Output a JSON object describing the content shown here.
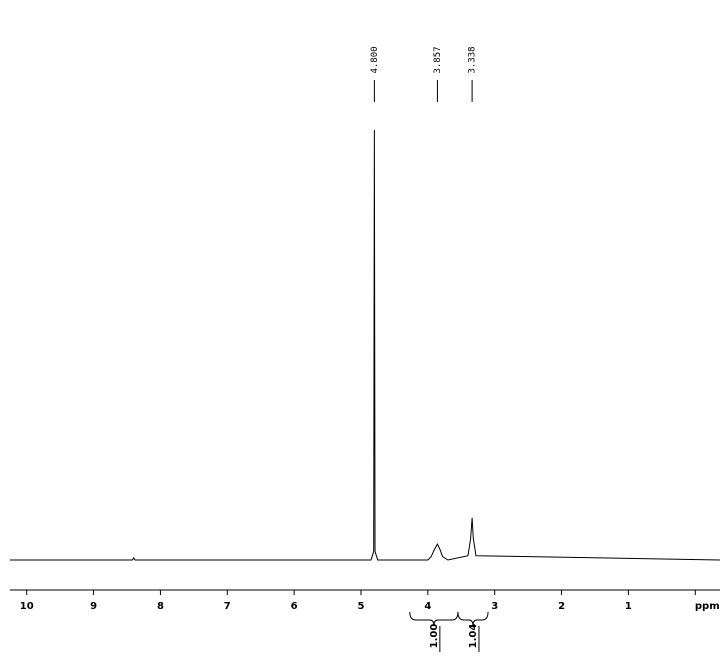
{
  "chart_data": {
    "type": "line",
    "x": [
      10.25,
      8.42,
      8.4,
      8.38,
      4.85,
      4.81,
      4.8,
      4.79,
      4.75,
      4.0,
      3.95,
      3.9,
      3.857,
      3.82,
      3.78,
      3.7,
      3.4,
      3.36,
      3.338,
      3.32,
      3.28,
      -0.37
    ],
    "values": [
      0,
      0,
      0.5,
      0,
      0,
      2,
      100,
      2,
      0,
      0,
      0.8,
      2.5,
      3.7,
      2.5,
      0.8,
      0,
      1,
      5,
      9.8,
      5,
      1,
      0
    ],
    "color": "#000000",
    "xlim": [
      10.25,
      -0.37
    ],
    "ylim": [
      0,
      100
    ],
    "xticks": [
      10,
      9,
      8,
      7,
      6,
      5,
      4,
      3,
      2,
      1,
      {
        "value": 0,
        "label": "ppm"
      }
    ],
    "peak_labels": [
      {
        "value": 4.8,
        "label": "4.800"
      },
      {
        "value": 3.857,
        "label": "3.857"
      },
      {
        "value": 3.338,
        "label": "3.338"
      }
    ],
    "integrals": [
      {
        "value": 1,
        "label": "1.00",
        "range": [
          4.27,
          3.55
        ]
      },
      {
        "value": 1.04,
        "label": "1.04",
        "range": [
          3.55,
          3.1
        ]
      }
    ]
  }
}
